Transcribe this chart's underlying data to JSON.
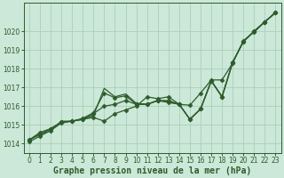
{
  "title": "Graphe pression niveau de la mer (hPa)",
  "background_color": "#cce8d8",
  "grid_color": "#aacfba",
  "line_color": "#2d5c2d",
  "x_values": [
    0,
    1,
    2,
    3,
    4,
    5,
    6,
    7,
    8,
    9,
    10,
    11,
    12,
    13,
    14,
    15,
    16,
    17,
    18,
    19,
    20,
    21,
    22,
    23
  ],
  "series": [
    [
      1014.2,
      1014.5,
      1014.7,
      1015.2,
      1015.2,
      1015.3,
      1015.5,
      1016.95,
      1016.5,
      1016.65,
      1016.15,
      1016.1,
      1016.3,
      1016.25,
      1016.1,
      1015.3,
      1015.85,
      1017.35,
      1016.5,
      1018.35,
      1019.45,
      1020.0,
      1020.5,
      1021.0
    ],
    [
      1014.2,
      1014.6,
      1014.8,
      1015.15,
      1015.2,
      1015.35,
      1015.65,
      1016.7,
      1016.45,
      1016.55,
      1016.1,
      1016.1,
      1016.3,
      1016.2,
      1016.1,
      1015.3,
      1015.85,
      1017.35,
      1016.5,
      1018.35,
      1019.45,
      1020.0,
      1020.5,
      1021.0
    ],
    [
      1014.2,
      1014.5,
      1014.8,
      1015.15,
      1015.2,
      1015.3,
      1015.6,
      1016.0,
      1016.1,
      1016.3,
      1016.1,
      1016.1,
      1016.3,
      1016.3,
      1016.1,
      1015.3,
      1015.85,
      1017.35,
      1016.5,
      1018.35,
      1019.45,
      1020.0,
      1020.5,
      1021.0
    ],
    [
      1014.1,
      1014.4,
      1014.7,
      1015.1,
      1015.2,
      1015.3,
      1015.4,
      1015.2,
      1015.6,
      1015.8,
      1016.0,
      1016.5,
      1016.4,
      1016.5,
      1016.1,
      1016.05,
      1016.7,
      1017.4,
      1017.4,
      1018.3,
      1019.5,
      1019.95,
      1020.5,
      1021.0
    ]
  ],
  "ylim": [
    1013.5,
    1021.5
  ],
  "yticks": [
    1014,
    1015,
    1016,
    1017,
    1018,
    1019,
    1020
  ],
  "xlim": [
    -0.5,
    23.5
  ],
  "xticks": [
    0,
    1,
    2,
    3,
    4,
    5,
    6,
    7,
    8,
    9,
    10,
    11,
    12,
    13,
    14,
    15,
    16,
    17,
    18,
    19,
    20,
    21,
    22,
    23
  ],
  "marker": "D",
  "markersize": 2.5,
  "linewidth": 0.9,
  "tick_fontsize": 5.5,
  "xlabel_fontsize": 7.0,
  "figsize": [
    3.2,
    2.0
  ],
  "dpi": 100
}
